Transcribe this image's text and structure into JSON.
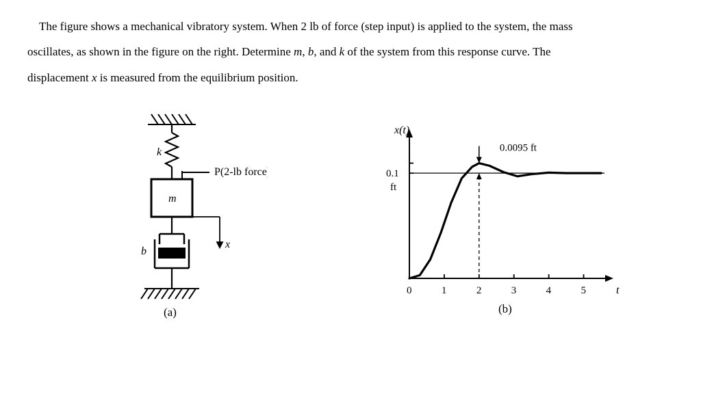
{
  "problem": {
    "line1": "The figure shows a mechanical vibratory system. When 2 lb of force (step input) is applied to the system, the mass",
    "line2_a": "oscillates, as shown in the figure on the right. Determine ",
    "line2_m": "m",
    "line2_b": ", ",
    "line2_bvar": "b",
    "line2_c": ", and ",
    "line2_k": "k",
    "line2_d": " of the system from this response curve. The",
    "line3_a": "displacement ",
    "line3_x": "x",
    "line3_b": " is measured from the equilibrium position."
  },
  "diagram_a": {
    "label_k": "k",
    "label_m": "m",
    "label_b": "b",
    "label_x": "x",
    "label_force": "P(2-lb force)",
    "caption": "(a)",
    "colors": {
      "stroke": "#000000",
      "fill_mass": "#ffffff",
      "fill_damper": "#000000"
    }
  },
  "chart_b": {
    "type": "line",
    "caption": "(b)",
    "y_axis_label": "x(t)",
    "y_tick_label": "0.1",
    "y_unit": "ft",
    "overshoot_label": "0.0095 ft",
    "x_ticks": [
      "0",
      "1",
      "2",
      "3",
      "4",
      "5"
    ],
    "x_axis_label": "t",
    "xlim": [
      0,
      5.5
    ],
    "ylim": [
      0,
      0.13
    ],
    "steady_state": 0.1,
    "peak_time": 2,
    "peak_value": 0.1095,
    "curve_points": [
      [
        0,
        0
      ],
      [
        0.3,
        0.003
      ],
      [
        0.6,
        0.018
      ],
      [
        0.9,
        0.043
      ],
      [
        1.2,
        0.072
      ],
      [
        1.5,
        0.095
      ],
      [
        1.8,
        0.106
      ],
      [
        2.0,
        0.1095
      ],
      [
        2.3,
        0.107
      ],
      [
        2.7,
        0.101
      ],
      [
        3.1,
        0.097
      ],
      [
        3.5,
        0.099
      ],
      [
        4.0,
        0.1005
      ],
      [
        4.5,
        0.1
      ],
      [
        5.0,
        0.1
      ],
      [
        5.5,
        0.1
      ]
    ],
    "colors": {
      "axis": "#000000",
      "curve": "#000000",
      "steady_line": "#000000",
      "background": "#ffffff"
    },
    "line_width_curve": 3.2,
    "line_width_axis": 2
  }
}
